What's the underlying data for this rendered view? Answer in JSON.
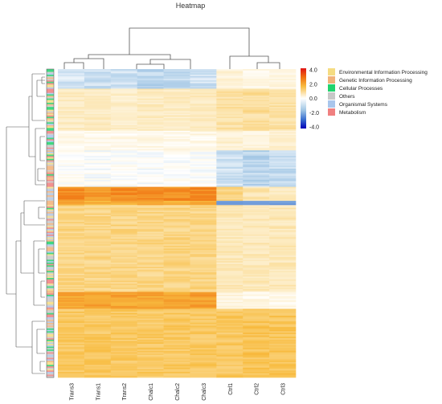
{
  "chart_data": {
    "type": "heatmap",
    "title": "Heatmap",
    "columns": [
      "Trans3",
      "Trans1",
      "Trans2",
      "Chalc1",
      "Chalc2",
      "Chalc3",
      "Ctrl1",
      "Ctrl2",
      "Ctrl3"
    ],
    "colorbar": {
      "ticks": [
        "4.0",
        "2.0",
        "0.0",
        "-2.0",
        "-4.0"
      ],
      "vmin": -4,
      "vmax": 4,
      "colors": {
        "low": "#0000b8",
        "mid": "#ffffff",
        "high": "#e01414"
      }
    },
    "annotation_legend": [
      {
        "label": "Environmental Information Processing",
        "color": "#f5dc82"
      },
      {
        "label": "Genetic Information Processing",
        "color": "#f2b27a"
      },
      {
        "label": "Cellular Processes",
        "color": "#22d36e"
      },
      {
        "label": "Others",
        "color": "#c8c8c8"
      },
      {
        "label": "Organismal Systems",
        "color": "#a9c6ec"
      },
      {
        "label": "Metabolism",
        "color": "#f08080"
      }
    ],
    "row_blocks": [
      {
        "rows": 14,
        "values": [
          -0.4,
          -0.5,
          -0.5,
          -0.7,
          -0.6,
          -0.5,
          0.5,
          0.3,
          0.4
        ]
      },
      {
        "rows": 30,
        "values": [
          0.8,
          0.8,
          0.7,
          0.8,
          0.8,
          0.8,
          1.1,
          1.2,
          1.1
        ]
      },
      {
        "rows": 14,
        "values": [
          0.25,
          0.3,
          0.25,
          0.3,
          0.3,
          0.3,
          0.6,
          0.5,
          0.6
        ]
      },
      {
        "rows": 26,
        "values": [
          0.05,
          0.0,
          0.05,
          0.0,
          0.05,
          0.0,
          -0.5,
          -0.7,
          -0.6
        ]
      },
      {
        "rows": 10,
        "values": [
          2.6,
          2.5,
          2.6,
          2.6,
          2.6,
          2.7,
          1.5,
          1.0,
          0.8
        ]
      },
      {
        "rows": 3,
        "values": [
          2.2,
          2.2,
          2.2,
          2.2,
          2.2,
          2.2,
          -1.8,
          -1.5,
          -1.8
        ]
      },
      {
        "rows": 62,
        "values": [
          1.4,
          1.4,
          1.4,
          1.4,
          1.4,
          1.4,
          0.9,
          0.9,
          0.9
        ]
      },
      {
        "rows": 12,
        "values": [
          2.3,
          2.3,
          2.3,
          2.3,
          2.3,
          2.4,
          0.4,
          0.3,
          0.3
        ]
      },
      {
        "rows": 49,
        "values": [
          1.7,
          1.7,
          1.7,
          1.7,
          1.7,
          1.7,
          1.7,
          1.8,
          1.8
        ]
      }
    ]
  }
}
